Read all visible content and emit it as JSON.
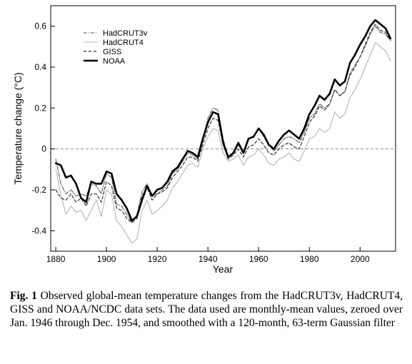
{
  "chart_data": {
    "type": "line",
    "title": "",
    "xlabel": "Year",
    "ylabel": "Temperature change (°C)",
    "xlim": [
      1878,
      2014
    ],
    "ylim": [
      -0.5,
      0.7
    ],
    "xticks": [
      1880,
      1900,
      1920,
      1940,
      1960,
      1980,
      2000
    ],
    "yticks": [
      -0.4,
      -0.2,
      0,
      0.2,
      0.4,
      0.6
    ],
    "legend_position": "top-left",
    "grid": false,
    "zero_line": true,
    "x": [
      1880,
      1882,
      1884,
      1886,
      1888,
      1890,
      1892,
      1894,
      1896,
      1898,
      1900,
      1902,
      1904,
      1906,
      1908,
      1910,
      1912,
      1914,
      1916,
      1918,
      1920,
      1922,
      1924,
      1926,
      1928,
      1930,
      1932,
      1934,
      1936,
      1938,
      1940,
      1942,
      1944,
      1946,
      1948,
      1950,
      1952,
      1954,
      1956,
      1958,
      1960,
      1962,
      1964,
      1966,
      1968,
      1970,
      1972,
      1974,
      1976,
      1978,
      1980,
      1982,
      1984,
      1986,
      1988,
      1990,
      1992,
      1994,
      1996,
      1998,
      2000,
      2002,
      2004,
      2006,
      2008,
      2010,
      2012
    ],
    "series": [
      {
        "name": "HadCRUT3v",
        "style": "dash-dot",
        "color": "#555555",
        "values": [
          -0.05,
          -0.17,
          -0.22,
          -0.2,
          -0.23,
          -0.22,
          -0.23,
          -0.17,
          -0.18,
          -0.22,
          -0.12,
          -0.14,
          -0.27,
          -0.28,
          -0.32,
          -0.36,
          -0.32,
          -0.21,
          -0.17,
          -0.23,
          -0.22,
          -0.2,
          -0.18,
          -0.12,
          -0.1,
          -0.06,
          -0.02,
          -0.03,
          -0.05,
          0.05,
          0.15,
          0.2,
          0.19,
          0.05,
          -0.04,
          -0.02,
          0.02,
          -0.02,
          0.05,
          0.06,
          0.1,
          0.06,
          0.02,
          -0.01,
          0.02,
          0.05,
          0.06,
          0.05,
          0.03,
          0.08,
          0.15,
          0.17,
          0.22,
          0.2,
          0.22,
          0.29,
          0.26,
          0.28,
          0.37,
          0.41,
          0.45,
          0.5,
          0.56,
          0.6,
          0.57,
          0.56,
          0.53
        ]
      },
      {
        "name": "HadCRUT4",
        "style": "solid-thin",
        "color": "#b4b4b4",
        "values": [
          -0.1,
          -0.22,
          -0.32,
          -0.28,
          -0.31,
          -0.3,
          -0.35,
          -0.3,
          -0.25,
          -0.33,
          -0.2,
          -0.22,
          -0.35,
          -0.38,
          -0.42,
          -0.46,
          -0.44,
          -0.3,
          -0.25,
          -0.32,
          -0.3,
          -0.28,
          -0.25,
          -0.19,
          -0.16,
          -0.12,
          -0.08,
          -0.07,
          -0.09,
          0.0,
          0.06,
          0.1,
          0.09,
          -0.02,
          -0.06,
          -0.05,
          -0.03,
          -0.08,
          -0.04,
          -0.03,
          0.0,
          -0.03,
          -0.07,
          -0.08,
          -0.05,
          -0.04,
          -0.02,
          -0.05,
          -0.06,
          -0.01,
          0.05,
          0.06,
          0.1,
          0.08,
          0.1,
          0.18,
          0.15,
          0.17,
          0.25,
          0.29,
          0.34,
          0.4,
          0.46,
          0.52,
          0.5,
          0.48,
          0.43
        ]
      },
      {
        "name": "GISS",
        "style": "dashed",
        "color": "#333333",
        "values": [
          -0.2,
          -0.24,
          -0.25,
          -0.22,
          -0.26,
          -0.24,
          -0.28,
          -0.22,
          -0.22,
          -0.26,
          -0.16,
          -0.18,
          -0.29,
          -0.3,
          -0.34,
          -0.36,
          -0.34,
          -0.23,
          -0.19,
          -0.25,
          -0.22,
          -0.21,
          -0.19,
          -0.14,
          -0.11,
          -0.08,
          -0.04,
          -0.04,
          -0.06,
          0.02,
          0.1,
          0.15,
          0.14,
          0.02,
          -0.05,
          -0.03,
          0.0,
          -0.04,
          0.01,
          0.02,
          0.05,
          0.02,
          -0.02,
          -0.03,
          0.0,
          0.02,
          0.03,
          0.01,
          0.0,
          0.06,
          0.13,
          0.16,
          0.21,
          0.19,
          0.22,
          0.29,
          0.26,
          0.28,
          0.36,
          0.4,
          0.45,
          0.51,
          0.57,
          0.61,
          0.58,
          0.57,
          0.53
        ]
      },
      {
        "name": "NOAA",
        "style": "solid-thick",
        "color": "#000000",
        "values": [
          -0.07,
          -0.08,
          -0.14,
          -0.13,
          -0.17,
          -0.24,
          -0.26,
          -0.16,
          -0.17,
          -0.17,
          -0.11,
          -0.12,
          -0.22,
          -0.25,
          -0.29,
          -0.35,
          -0.33,
          -0.25,
          -0.18,
          -0.23,
          -0.2,
          -0.19,
          -0.16,
          -0.11,
          -0.09,
          -0.05,
          -0.01,
          -0.02,
          -0.04,
          0.05,
          0.13,
          0.18,
          0.17,
          0.03,
          -0.04,
          -0.02,
          0.03,
          -0.02,
          0.05,
          0.06,
          0.1,
          0.07,
          0.02,
          0.0,
          0.04,
          0.07,
          0.09,
          0.07,
          0.05,
          0.1,
          0.17,
          0.21,
          0.26,
          0.24,
          0.27,
          0.34,
          0.31,
          0.33,
          0.42,
          0.46,
          0.51,
          0.55,
          0.6,
          0.63,
          0.61,
          0.59,
          0.54
        ]
      }
    ]
  },
  "caption": {
    "label": "Fig. 1",
    "text": "Observed global-mean temperature changes from the HadCRUT3v, HadCRUT4, GISS and NOAA/NCDC data sets. The data used are monthly-mean values, zeroed over Jan. 1946 through Dec. 1954, and smoothed with a 120-month, 63-term Gaussian filter"
  }
}
